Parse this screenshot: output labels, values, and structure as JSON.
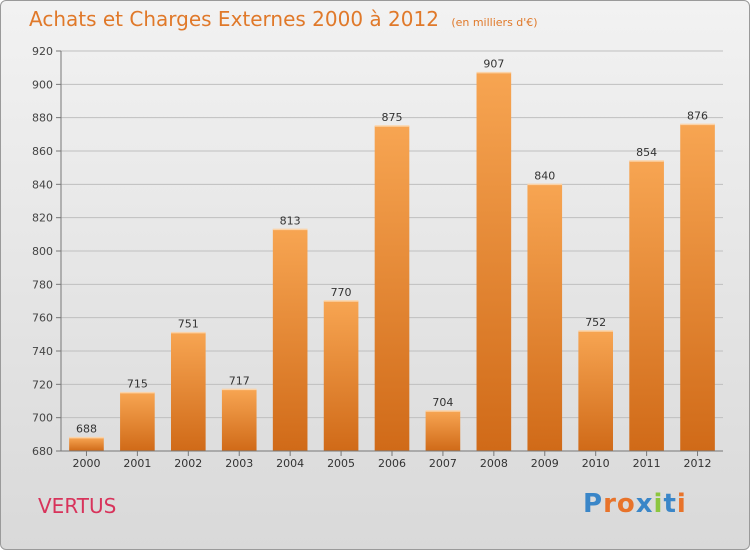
{
  "title": "Achats et Charges Externes 2000 à 2012",
  "subtitle": "(en milliers d'€)",
  "commune": "VERTUS",
  "logo": {
    "text": "Proxiti",
    "letter_colors": [
      "#3a86c8",
      "#e8732a",
      "#e8732a",
      "#3a86c8",
      "#8cc63f",
      "#3a86c8",
      "#e8732a"
    ]
  },
  "colors": {
    "title": "#e0792a",
    "bar_top": "#f7a552",
    "bar_bottom": "#d06a18",
    "commune": "#d8335b",
    "grid": "#bfbfbf"
  },
  "chart_data": {
    "type": "bar",
    "categories": [
      "2000",
      "2001",
      "2002",
      "2003",
      "2004",
      "2005",
      "2006",
      "2007",
      "2008",
      "2009",
      "2010",
      "2011",
      "2012"
    ],
    "values": [
      688,
      715,
      751,
      717,
      813,
      770,
      875,
      704,
      907,
      840,
      752,
      854,
      876
    ],
    "ylim": [
      680,
      920
    ],
    "yticks": [
      680,
      700,
      720,
      740,
      760,
      780,
      800,
      820,
      840,
      860,
      880,
      900,
      920
    ],
    "grid": true,
    "data_labels": true
  }
}
